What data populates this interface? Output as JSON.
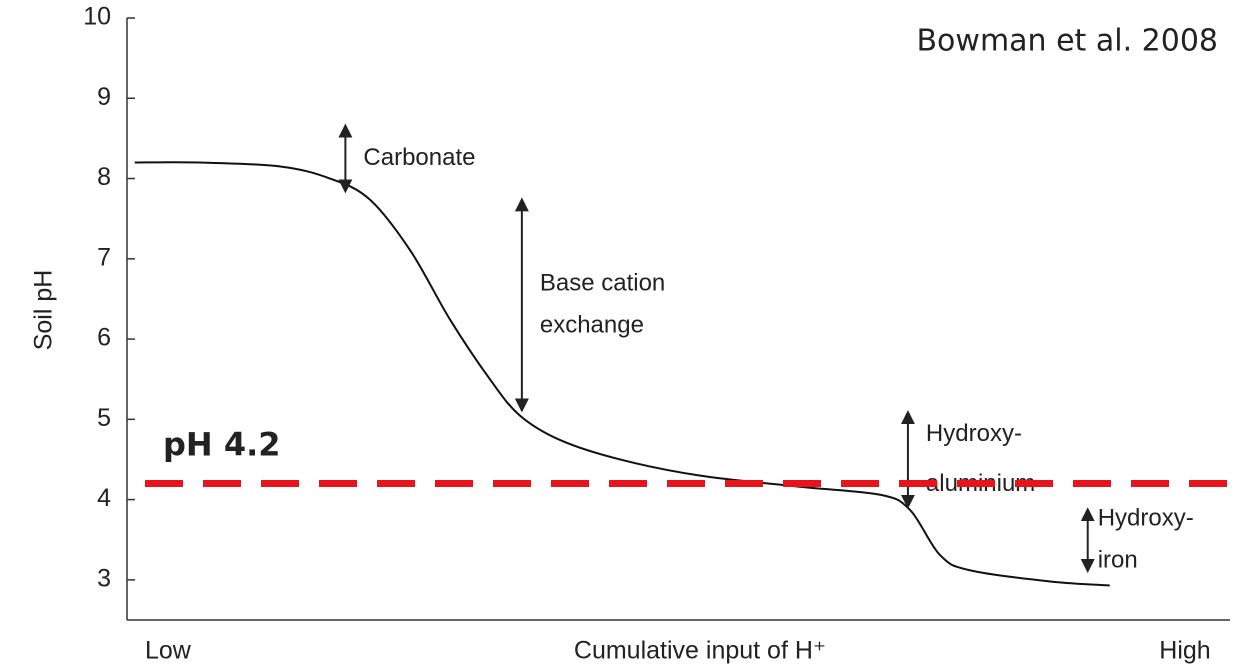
{
  "chart_data": {
    "type": "line",
    "y_label": "Soil pH",
    "x_label": "Cumulative input of H⁺",
    "x_low_label": "Low",
    "x_high_label": "High",
    "credit": "Bowman et al. 2008",
    "xlim": [
      0,
      100
    ],
    "ylim": [
      2.5,
      10
    ],
    "yticks": [
      3,
      4,
      5,
      6,
      7,
      8,
      9,
      10
    ],
    "series": [
      {
        "color": "#111111",
        "x": [
          0.7,
          6.6,
          13.9,
          18.4,
          22,
          25.7,
          29.3,
          32.9,
          35.6,
          39.3,
          44.7,
          51.9,
          61,
          68.3,
          71,
          73.7,
          76.4,
          83.7,
          89.1
        ],
        "values": [
          8.2,
          8.2,
          8.15,
          8.0,
          7.74,
          7.1,
          6.24,
          5.5,
          5.05,
          4.74,
          4.5,
          4.3,
          4.16,
          4.06,
          3.87,
          3.31,
          3.12,
          2.98,
          2.93
        ]
      }
    ],
    "reference_line": {
      "value": 4.2,
      "label": "pH 4.2",
      "color": "#e8141b"
    },
    "annotations": [
      {
        "lines": [
          "Carbonate"
        ],
        "x": 19.8,
        "y1": 8.65,
        "y2": 7.85
      },
      {
        "lines": [
          "Base cation",
          "exchange"
        ],
        "x": 35.8,
        "y1": 7.73,
        "y2": 5.12
      },
      {
        "lines": [
          "Hydroxy-",
          "aluminium"
        ],
        "x": 70.8,
        "y1": 5.08,
        "y2": 3.92
      },
      {
        "lines": [
          "Hydroxy-",
          "iron"
        ],
        "x": 87.1,
        "y1": 3.87,
        "y2": 3.12
      }
    ]
  }
}
